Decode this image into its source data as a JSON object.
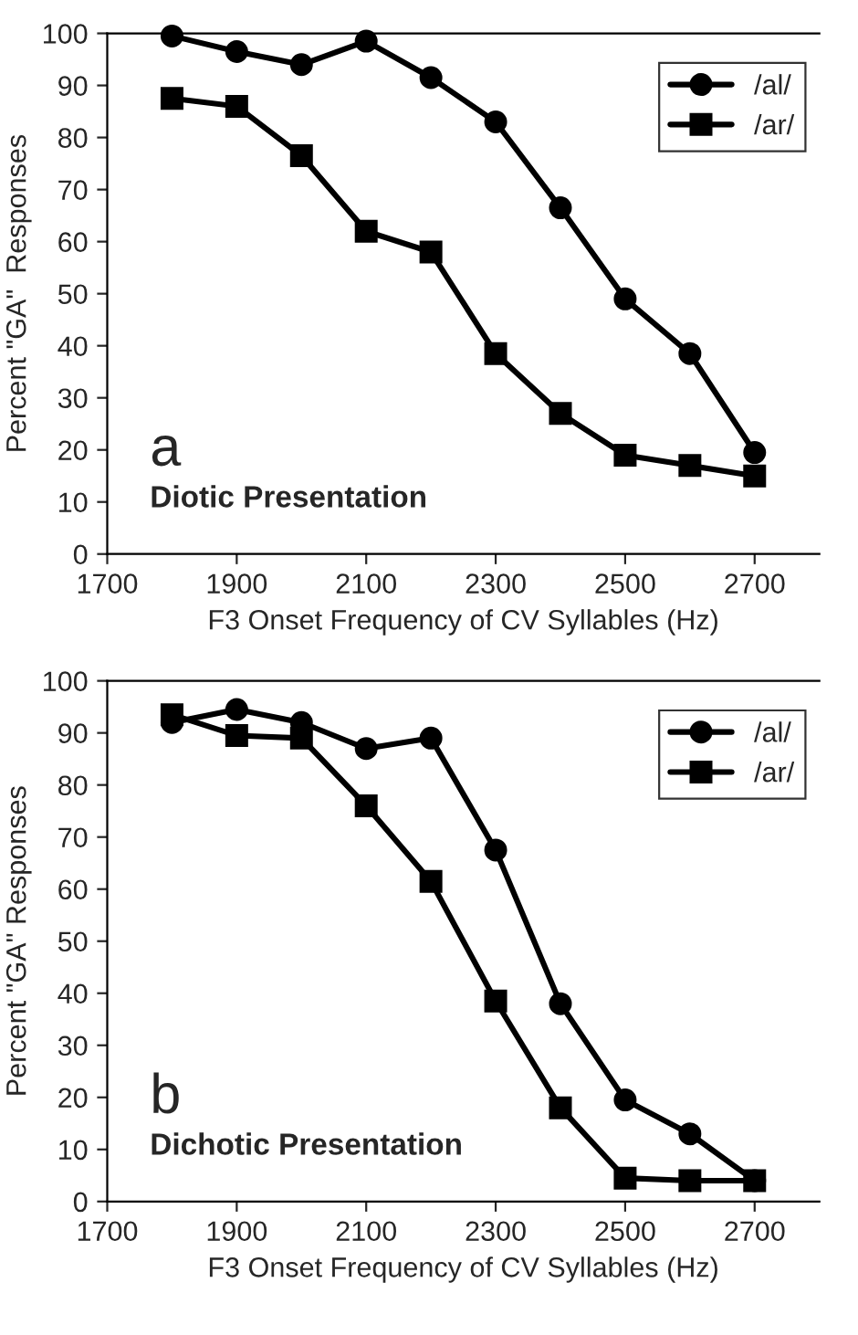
{
  "chart_data": [
    {
      "type": "line",
      "xlabel": "F3 Onset Frequency of CV Syllables (Hz)",
      "ylabel": "Percent \"GA\"  Responses",
      "annotations": [
        "a",
        "Diotic Presentation"
      ],
      "x": [
        1800,
        1900,
        2000,
        2100,
        2200,
        2300,
        2400,
        2500,
        2600,
        2700
      ],
      "series": [
        {
          "name": "/al/",
          "color": "#000000",
          "marker": "circle",
          "values": [
            99.5,
            96.5,
            94,
            98.5,
            91.5,
            83,
            66.5,
            49,
            38.5,
            19.5
          ]
        },
        {
          "name": "/ar/",
          "color": "#000000",
          "marker": "square",
          "values": [
            87.5,
            86,
            76.5,
            62,
            58,
            38.5,
            27,
            19,
            17,
            15
          ]
        }
      ],
      "xlim": [
        1700,
        2800
      ],
      "xticks": [
        1700,
        1900,
        2100,
        2300,
        2500,
        2700
      ],
      "ylim": [
        0,
        100
      ],
      "yticks": [
        0,
        10,
        20,
        30,
        40,
        50,
        60,
        70,
        80,
        90,
        100
      ],
      "legend": "top right",
      "grid": false,
      "line_style": "solid"
    },
    {
      "type": "line",
      "xlabel": "F3 Onset Frequency of CV Syllables (Hz)",
      "ylabel": "Percent \"GA\" Responses",
      "annotations": [
        "b",
        "Dichotic Presentation"
      ],
      "x": [
        1800,
        1900,
        2000,
        2100,
        2200,
        2300,
        2400,
        2500,
        2600,
        2700
      ],
      "series": [
        {
          "name": "/al/",
          "color": "#000000",
          "marker": "circle",
          "values": [
            92,
            94.5,
            92,
            87,
            89,
            67.5,
            38,
            19.5,
            13,
            4
          ]
        },
        {
          "name": "/ar/",
          "color": "#000000",
          "marker": "square",
          "values": [
            93.5,
            89.5,
            89,
            76,
            61.5,
            38.5,
            18,
            4.5,
            4,
            4
          ]
        }
      ],
      "xlim": [
        1700,
        2800
      ],
      "xticks": [
        1700,
        1900,
        2100,
        2300,
        2500,
        2700
      ],
      "ylim": [
        0,
        100
      ],
      "yticks": [
        0,
        10,
        20,
        30,
        40,
        50,
        60,
        70,
        80,
        90,
        100
      ],
      "legend": "top right",
      "grid": false,
      "line_style": "solid"
    }
  ]
}
